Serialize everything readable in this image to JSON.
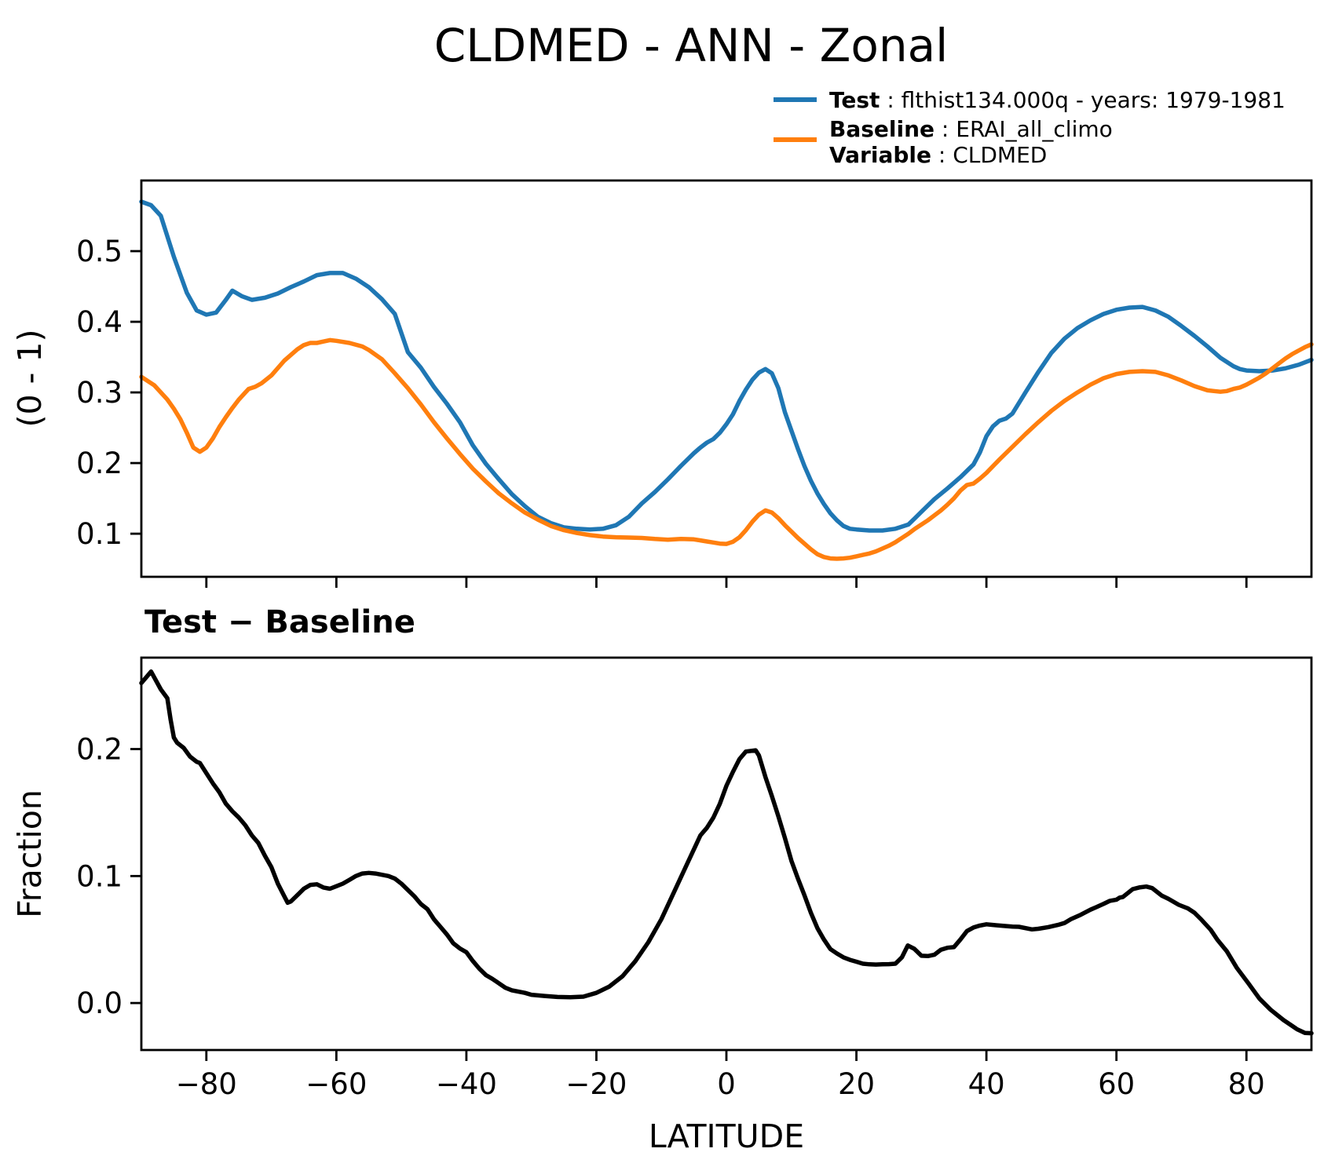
{
  "title": "CLDMED - ANN - Zonal",
  "subtitle": "Test − Baseline",
  "xlabel": "LATITUDE",
  "legend": {
    "position": "upper right, above axes",
    "test_color": "#1f77b4",
    "baseline_color": "#ff7f0e",
    "test_bold": "Test",
    "test_rest": " : flthist134.000q - years: 1979-1981",
    "baseline_bold": "Baseline",
    "baseline_rest": " : ERAI_all_climo",
    "variable_bold": "Variable",
    "variable_rest": " : CLDMED"
  },
  "chart_data": [
    {
      "type": "line",
      "title": "CLDMED - ANN - Zonal",
      "xlabel": "",
      "ylabel": "(0 - 1)",
      "xlim": [
        -90,
        90
      ],
      "ylim": [
        0.039,
        0.6
      ],
      "grid": false,
      "xticks": [
        -80,
        -60,
        -40,
        -20,
        0,
        20,
        40,
        60,
        80
      ],
      "xtick_labels": [],
      "yticks": [
        0.1,
        0.2,
        0.3,
        0.4,
        0.5
      ],
      "ytick_labels": [
        "0.1",
        "0.2",
        "0.3",
        "0.4",
        "0.5"
      ],
      "series": [
        {
          "name": "Test",
          "color": "#1f77b4",
          "x": [
            -90,
            -88.5,
            -87,
            -85,
            -83,
            -81.5,
            -80,
            -78.5,
            -77,
            -76,
            -74.5,
            -73,
            -71,
            -69,
            -67,
            -65,
            -63,
            -61,
            -59,
            -57,
            -55,
            -53,
            -51,
            -49,
            -47,
            -45,
            -43,
            -41,
            -39,
            -37,
            -35,
            -33,
            -31,
            -29,
            -27,
            -25,
            -23,
            -21,
            -19,
            -17,
            -15,
            -13,
            -11,
            -9,
            -7,
            -5,
            -4,
            -3,
            -2,
            -1,
            0,
            1,
            2,
            3,
            4,
            5,
            6,
            7,
            8,
            9,
            10,
            11,
            12,
            13,
            14,
            15,
            16,
            17,
            18,
            19,
            20,
            22,
            24,
            26,
            28,
            29,
            30,
            32,
            34,
            36,
            37,
            38,
            39,
            40,
            41,
            42,
            43,
            44,
            45,
            46,
            48,
            50,
            52,
            54,
            56,
            58,
            60,
            62,
            64,
            66,
            68,
            70,
            72,
            74,
            76,
            78,
            79,
            80,
            82,
            84,
            86,
            88,
            90
          ],
          "y": [
            0.57,
            0.565,
            0.55,
            0.492,
            0.441,
            0.416,
            0.41,
            0.413,
            0.431,
            0.444,
            0.436,
            0.431,
            0.434,
            0.44,
            0.449,
            0.457,
            0.466,
            0.469,
            0.469,
            0.461,
            0.449,
            0.432,
            0.411,
            0.357,
            0.335,
            0.308,
            0.284,
            0.258,
            0.225,
            0.199,
            0.177,
            0.156,
            0.139,
            0.124,
            0.115,
            0.109,
            0.107,
            0.106,
            0.107,
            0.112,
            0.124,
            0.143,
            0.159,
            0.177,
            0.196,
            0.214,
            0.222,
            0.229,
            0.234,
            0.243,
            0.255,
            0.269,
            0.288,
            0.304,
            0.318,
            0.328,
            0.333,
            0.327,
            0.306,
            0.272,
            0.246,
            0.22,
            0.196,
            0.175,
            0.157,
            0.142,
            0.129,
            0.119,
            0.111,
            0.107,
            0.106,
            0.1045,
            0.1045,
            0.107,
            0.113,
            0.122,
            0.131,
            0.149,
            0.164,
            0.18,
            0.189,
            0.198,
            0.215,
            0.238,
            0.252,
            0.26,
            0.263,
            0.27,
            0.285,
            0.3,
            0.329,
            0.356,
            0.376,
            0.391,
            0.402,
            0.411,
            0.417,
            0.42,
            0.421,
            0.416,
            0.407,
            0.394,
            0.38,
            0.365,
            0.349,
            0.337,
            0.333,
            0.331,
            0.33,
            0.331,
            0.334,
            0.339,
            0.346
          ]
        },
        {
          "name": "Baseline",
          "color": "#ff7f0e",
          "x": [
            -90,
            -88,
            -86,
            -85,
            -84,
            -83,
            -82,
            -81,
            -80,
            -79,
            -78,
            -77,
            -76,
            -75,
            -74,
            -73.5,
            -72.5,
            -71.5,
            -70,
            -68,
            -66,
            -65,
            -64,
            -63,
            -62,
            -61,
            -60,
            -58,
            -56,
            -55,
            -53,
            -51,
            -49,
            -47,
            -45,
            -43,
            -41,
            -39,
            -37,
            -35,
            -33,
            -31,
            -29,
            -27,
            -25,
            -23,
            -21,
            -19,
            -17,
            -15,
            -13,
            -11,
            -9,
            -7,
            -5,
            -4,
            -3,
            -2,
            -1,
            0,
            1,
            2,
            3,
            4,
            5,
            6,
            7,
            8,
            9,
            10,
            11,
            12,
            13,
            14,
            15,
            16,
            17,
            18,
            19,
            20,
            21,
            22,
            23,
            24,
            25,
            26,
            27,
            28,
            29,
            30,
            31,
            32,
            33,
            34,
            35,
            36,
            37,
            38,
            39,
            40,
            42,
            44,
            46,
            48,
            50,
            52,
            54,
            56,
            58,
            60,
            62,
            64,
            66,
            68,
            70,
            72,
            74,
            75,
            76,
            77,
            78,
            79,
            80,
            81,
            82,
            83,
            84,
            85,
            86,
            87,
            88,
            89,
            90
          ],
          "y": [
            0.322,
            0.31,
            0.29,
            0.277,
            0.262,
            0.243,
            0.222,
            0.216,
            0.222,
            0.235,
            0.251,
            0.265,
            0.278,
            0.29,
            0.3,
            0.305,
            0.308,
            0.313,
            0.324,
            0.345,
            0.361,
            0.367,
            0.37,
            0.37,
            0.372,
            0.374,
            0.373,
            0.37,
            0.365,
            0.36,
            0.347,
            0.327,
            0.306,
            0.283,
            0.258,
            0.235,
            0.213,
            0.192,
            0.174,
            0.157,
            0.143,
            0.13,
            0.12,
            0.111,
            0.105,
            0.101,
            0.098,
            0.096,
            0.095,
            0.0945,
            0.094,
            0.0925,
            0.0915,
            0.0925,
            0.092,
            0.0905,
            0.089,
            0.0875,
            0.086,
            0.0855,
            0.0885,
            0.095,
            0.105,
            0.117,
            0.127,
            0.133,
            0.13,
            0.122,
            0.112,
            0.103,
            0.094,
            0.086,
            0.078,
            0.071,
            0.067,
            0.065,
            0.0645,
            0.065,
            0.066,
            0.068,
            0.07,
            0.072,
            0.075,
            0.079,
            0.083,
            0.088,
            0.094,
            0.1,
            0.107,
            0.113,
            0.119,
            0.126,
            0.133,
            0.141,
            0.15,
            0.161,
            0.169,
            0.171,
            0.178,
            0.186,
            0.205,
            0.223,
            0.241,
            0.258,
            0.274,
            0.288,
            0.3,
            0.311,
            0.32,
            0.326,
            0.329,
            0.33,
            0.329,
            0.324,
            0.317,
            0.309,
            0.303,
            0.302,
            0.301,
            0.302,
            0.305,
            0.307,
            0.311,
            0.316,
            0.321,
            0.327,
            0.334,
            0.341,
            0.348,
            0.354,
            0.359,
            0.364,
            0.368
          ]
        }
      ]
    },
    {
      "type": "line",
      "title": "Test − Baseline",
      "xlabel": "LATITUDE",
      "ylabel": "Fraction",
      "xlim": [
        -90,
        90
      ],
      "ylim": [
        -0.037,
        0.272
      ],
      "grid": false,
      "xticks": [
        -80,
        -60,
        -40,
        -20,
        0,
        20,
        40,
        60,
        80
      ],
      "xtick_labels": [
        "−80",
        "−60",
        "−40",
        "−20",
        "0",
        "20",
        "40",
        "60",
        "80"
      ],
      "yticks": [
        0.0,
        0.1,
        0.2
      ],
      "ytick_labels": [
        "0.0",
        "0.1",
        "0.2"
      ],
      "series": [
        {
          "name": "Test − Baseline",
          "color": "#000000",
          "x": [
            -90,
            -88.5,
            -87,
            -86,
            -85.5,
            -85,
            -84.5,
            -83.5,
            -82.5,
            -81.5,
            -81,
            -80,
            -79,
            -78,
            -77,
            -76,
            -75,
            -74,
            -73,
            -72,
            -71,
            -70,
            -69,
            -68,
            -67.5,
            -67,
            -66,
            -65,
            -64,
            -63,
            -62,
            -61,
            -60,
            -59,
            -58,
            -57,
            -56,
            -55,
            -54,
            -53,
            -52,
            -51,
            -50,
            -49,
            -48,
            -47,
            -46,
            -45,
            -44,
            -43,
            -42,
            -41,
            -40,
            -39,
            -38,
            -37,
            -36,
            -35,
            -34,
            -33,
            -32,
            -31,
            -30,
            -28,
            -26,
            -24,
            -22,
            -20,
            -18,
            -16,
            -14,
            -12,
            -10,
            -8,
            -6,
            -4,
            -3,
            -2,
            -1,
            0,
            1,
            2,
            3,
            4.5,
            5,
            6,
            7,
            8,
            9,
            10,
            11,
            12,
            13,
            14,
            15,
            16,
            17,
            18,
            19,
            20,
            21,
            22,
            23,
            24,
            25,
            26,
            27,
            27.9,
            28.9,
            30,
            31,
            32,
            33,
            34,
            35,
            36,
            37,
            38,
            39,
            40,
            41,
            42,
            44,
            45,
            47,
            48,
            49.5,
            51,
            52,
            53,
            54.5,
            56,
            57,
            58,
            59,
            60,
            60.5,
            61,
            62.5,
            63.5,
            64.6,
            65.5,
            67,
            68,
            69.6,
            71,
            72,
            73,
            74.5,
            75.5,
            77,
            78.5,
            80.3,
            82,
            83.7,
            85.7,
            87.8,
            89,
            90
          ],
          "y": [
            0.252,
            0.261,
            0.247,
            0.24,
            0.223,
            0.209,
            0.205,
            0.201,
            0.194,
            0.19,
            0.189,
            0.181,
            0.173,
            0.166,
            0.157,
            0.151,
            0.146,
            0.14,
            0.132,
            0.126,
            0.116,
            0.107,
            0.094,
            0.084,
            0.079,
            0.08,
            0.085,
            0.09,
            0.093,
            0.0935,
            0.091,
            0.09,
            0.092,
            0.094,
            0.097,
            0.1,
            0.102,
            0.1025,
            0.102,
            0.101,
            0.1,
            0.098,
            0.094,
            0.089,
            0.084,
            0.078,
            0.074,
            0.066,
            0.06,
            0.054,
            0.047,
            0.043,
            0.04,
            0.033,
            0.027,
            0.022,
            0.019,
            0.0155,
            0.012,
            0.01,
            0.009,
            0.008,
            0.0065,
            0.0056,
            0.0048,
            0.0045,
            0.005,
            0.008,
            0.013,
            0.021,
            0.033,
            0.048,
            0.066,
            0.088,
            0.11,
            0.132,
            0.138,
            0.146,
            0.157,
            0.171,
            0.182,
            0.192,
            0.198,
            0.199,
            0.195,
            0.178,
            0.163,
            0.147,
            0.13,
            0.112,
            0.098,
            0.085,
            0.071,
            0.059,
            0.05,
            0.0425,
            0.039,
            0.036,
            0.034,
            0.0325,
            0.031,
            0.0305,
            0.0303,
            0.0305,
            0.0306,
            0.031,
            0.036,
            0.0453,
            0.0427,
            0.0372,
            0.037,
            0.038,
            0.042,
            0.0435,
            0.044,
            0.05,
            0.0567,
            0.0595,
            0.061,
            0.062,
            0.0615,
            0.061,
            0.0602,
            0.06,
            0.058,
            0.0585,
            0.0598,
            0.0615,
            0.063,
            0.066,
            0.0695,
            0.0735,
            0.0757,
            0.078,
            0.0805,
            0.0814,
            0.083,
            0.0835,
            0.0897,
            0.091,
            0.0917,
            0.0905,
            0.0845,
            0.082,
            0.0773,
            0.0745,
            0.0711,
            0.066,
            0.0577,
            0.05,
            0.0406,
            0.0278,
            0.0155,
            0.0035,
            -0.0052,
            -0.0134,
            -0.0207,
            -0.0235,
            -0.0238
          ]
        }
      ]
    }
  ]
}
